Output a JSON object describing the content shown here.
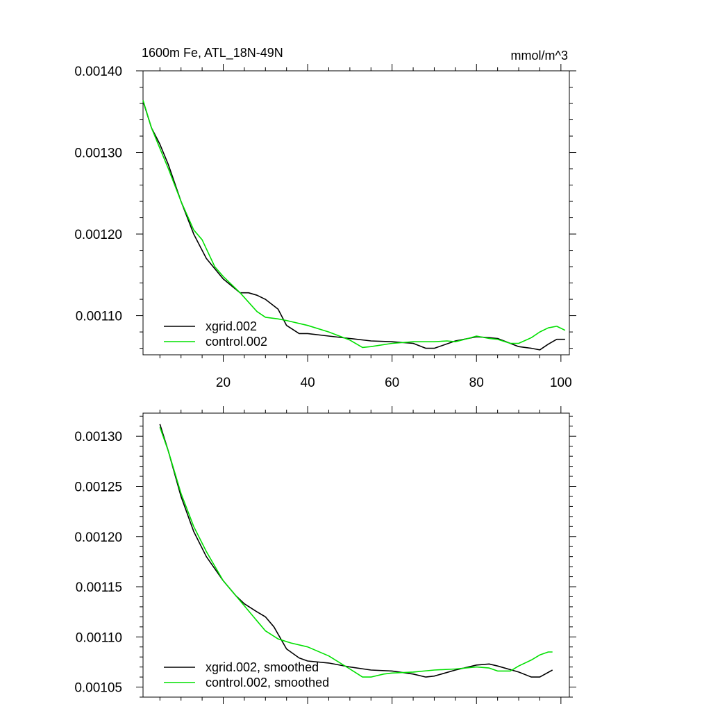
{
  "chart_data": [
    {
      "type": "line",
      "title": "1600m Fe, ATL_18N-49N",
      "units": "mmol/m^3",
      "xlim": [
        1,
        102
      ],
      "ylim": [
        0.001052,
        0.0014
      ],
      "xticks": [
        20,
        40,
        60,
        80,
        100
      ],
      "xtick_labels": [
        "20",
        "40",
        "60",
        "80",
        "100"
      ],
      "yticks": [
        0.0011,
        0.0012,
        0.0013,
        0.0014
      ],
      "ytick_labels": [
        "0.00110",
        "0.00120",
        "0.00130",
        "0.00140"
      ],
      "series": [
        {
          "name": "xgrid.002",
          "color": "#000000",
          "x": [
            1,
            3,
            5,
            7,
            10,
            13,
            16,
            20,
            24,
            26,
            28,
            30,
            33,
            35,
            38,
            40,
            45,
            50,
            55,
            60,
            65,
            68,
            70,
            75,
            80,
            83,
            85,
            88,
            90,
            93,
            95,
            97,
            99,
            101
          ],
          "y": [
            0.001363,
            0.00133,
            0.00131,
            0.001285,
            0.00124,
            0.0012,
            0.00117,
            0.001145,
            0.001128,
            0.001128,
            0.001125,
            0.00112,
            0.001108,
            0.001088,
            0.001078,
            0.001078,
            0.001075,
            0.001072,
            0.001069,
            0.001068,
            0.001066,
            0.00106,
            0.00106,
            0.001069,
            0.001074,
            0.001073,
            0.001072,
            0.001066,
            0.001062,
            0.00106,
            0.001058,
            0.001065,
            0.001071,
            0.001071
          ]
        },
        {
          "name": "control.002",
          "color": "#00e000",
          "x": [
            1,
            3,
            5,
            7,
            10,
            13,
            15,
            18,
            20,
            24,
            28,
            30,
            33,
            35,
            40,
            45,
            50,
            53,
            55,
            60,
            65,
            70,
            73,
            75,
            78,
            80,
            83,
            85,
            88,
            90,
            93,
            95,
            97,
            99,
            101
          ],
          "y": [
            0.001364,
            0.00133,
            0.001305,
            0.00128,
            0.00124,
            0.001205,
            0.001193,
            0.00116,
            0.001148,
            0.001128,
            0.001105,
            0.001098,
            0.001096,
            0.001094,
            0.001088,
            0.00108,
            0.00107,
            0.001061,
            0.001062,
            0.001066,
            0.001068,
            0.001068,
            0.001069,
            0.001068,
            0.001072,
            0.001075,
            0.001072,
            0.001071,
            0.001066,
            0.001066,
            0.001073,
            0.00108,
            0.001085,
            0.001087,
            0.001082
          ]
        }
      ]
    },
    {
      "type": "line",
      "title": "",
      "xlim": [
        1,
        102
      ],
      "ylim": [
        0.00104,
        0.001323
      ],
      "xticks": [
        20,
        40,
        60,
        80,
        100
      ],
      "xtick_labels": [],
      "yticks": [
        0.00105,
        0.0011,
        0.00115,
        0.0012,
        0.00125,
        0.0013
      ],
      "ytick_labels": [
        "0.00105",
        "0.00110",
        "0.00115",
        "0.00120",
        "0.00125",
        "0.00130"
      ],
      "series": [
        {
          "name": "xgrid.002, smoothed",
          "color": "#000000",
          "x": [
            5,
            7,
            10,
            13,
            16,
            20,
            23,
            25,
            28,
            30,
            32,
            35,
            38,
            40,
            45,
            50,
            55,
            60,
            65,
            68,
            70,
            75,
            80,
            83,
            85,
            90,
            93,
            95,
            98
          ],
          "y": [
            0.001312,
            0.001285,
            0.00124,
            0.001205,
            0.00118,
            0.001156,
            0.001141,
            0.001133,
            0.001125,
            0.00112,
            0.00111,
            0.001088,
            0.001079,
            0.001076,
            0.001074,
            0.00107,
            0.001067,
            0.001066,
            0.001063,
            0.00106,
            0.001061,
            0.001067,
            0.001072,
            0.001073,
            0.001071,
            0.001065,
            0.00106,
            0.00106,
            0.001067
          ]
        },
        {
          "name": "control.002, smoothed",
          "color": "#00e000",
          "x": [
            5,
            7,
            10,
            13,
            16,
            20,
            25,
            28,
            30,
            33,
            36,
            40,
            45,
            50,
            53,
            55,
            58,
            60,
            65,
            70,
            75,
            80,
            83,
            85,
            88,
            90,
            93,
            95,
            97,
            98
          ],
          "y": [
            0.001309,
            0.001285,
            0.001243,
            0.00121,
            0.001185,
            0.001156,
            0.001131,
            0.001116,
            0.001106,
            0.001098,
            0.001094,
            0.00109,
            0.001081,
            0.001068,
            0.00106,
            0.00106,
            0.001063,
            0.001064,
            0.001065,
            0.001067,
            0.001068,
            0.00107,
            0.001069,
            0.001066,
            0.001066,
            0.001071,
            0.001077,
            0.001082,
            0.001085,
            0.001085
          ]
        }
      ]
    }
  ]
}
